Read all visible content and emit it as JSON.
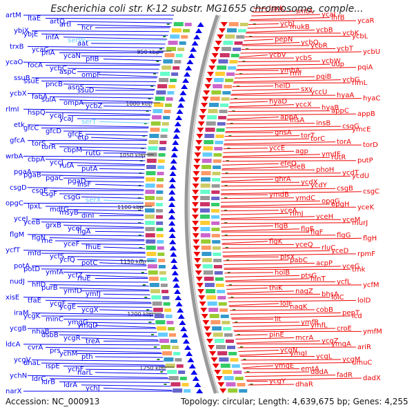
{
  "title": "Escherichia coli str. K-12 substr. MG1655 chromosome, comple...",
  "footer": {
    "accession": "Accession: NC_000913",
    "topology": "Topology: circular; Length: 4,639,675 bp; Genes: 4,255"
  },
  "scale_labels": [
    "950 kbp",
    "1000 kbp",
    "1050 kbp",
    "1100 kbp",
    "1150 kbp",
    "1200 kbp",
    "1250 kbp"
  ],
  "colors": {
    "forward": "#0000ee",
    "reverse": "#ee0000",
    "trna": "#66ccff",
    "backbone": "#999999",
    "tick": "#228822"
  },
  "left_genes": [
    "artM",
    "ltaE",
    "artQ",
    "artI",
    "hcr",
    "ybjX",
    "ybjE",
    "infA",
    "serW",
    "aat",
    "trxB",
    "ycaC",
    "pflA",
    "ycaN",
    "pflB",
    "ycaO",
    "focA",
    "ycbC",
    "aspC",
    "ompF",
    "ssuB",
    "ssuE",
    "pncB",
    "asnS",
    "ssuD",
    "ycbX",
    "fabA",
    "sulA",
    "ompA",
    "ycbZ",
    "rlmI",
    "hspQ",
    "ycaI",
    "ycaJ",
    "serT",
    "etk",
    "gfcC",
    "gfcD",
    "gfcE",
    "etp",
    "gfcA",
    "torS",
    "torR",
    "cbpM",
    "rutG",
    "wrbA",
    "cbpA",
    "yccJ",
    "rutA",
    "putA",
    "pgaA",
    "pgaB",
    "pgaC",
    "pgaD",
    "insF",
    "csgD",
    "csgE",
    "csgF",
    "csgG",
    "serX",
    "opgC",
    "lpxL",
    "mdtG",
    "msyB",
    "dinI",
    "yceJ",
    "yceB",
    "grxB",
    "yceI",
    "flgA",
    "flgM",
    "flgN",
    "rne",
    "yceF",
    "fhuE",
    "ycfT",
    "mfd",
    "ycfS",
    "ycfQ",
    "potC",
    "potA",
    "potD",
    "ymfA",
    "ycfZ",
    "rluE",
    "nudJ",
    "hflD",
    "purB",
    "ymfD",
    "ymfJ",
    "xisE",
    "tfaE",
    "ycgF",
    "ycgE",
    "ycgX",
    "iraM",
    "ycgK",
    "minC",
    "ymgG",
    "ymgD",
    "ycgB",
    "nhaB",
    "dsbB",
    "ycgR",
    "treA",
    "ldcA",
    "cvrA",
    "prs",
    "ychM",
    "pth",
    "ycgV",
    "dhaL",
    "ispE",
    "ychF",
    "narL",
    "ychN",
    "ldrC",
    "ldrB",
    "ldrA",
    "ychJ",
    "narX"
  ],
  "right_genes": [
    "lpxK",
    "smtA",
    "ycaI",
    "ihfB",
    "ycaR",
    "ycbJ",
    "mukB",
    "ycbB",
    "ycbK",
    "ycbL",
    "pepN",
    "ycbQ",
    "ycbR",
    "ycbT",
    "ycbU",
    "ycbV",
    "ycbS",
    "ycbW",
    "uup",
    "pqiA",
    "ymbA",
    "rmf",
    "pqiB",
    "ycbG",
    "rlmL",
    "helD",
    "sxy",
    "yccU",
    "hyaA",
    "hyaC",
    "hyaD",
    "yccX",
    "hyaB",
    "appC",
    "appB",
    "appA",
    "insA",
    "insB",
    "csgG",
    "ymcE",
    "gnsA",
    "torT",
    "torC",
    "torA",
    "torD",
    "yccE",
    "agp",
    "ymdF",
    "rutR",
    "putP",
    "efeO",
    "efeB",
    "phoH",
    "ycdT",
    "ycdU",
    "ghrA",
    "ycdX",
    "ycdY",
    "csgB",
    "csgC",
    "ymdB",
    "ymdC",
    "opgG",
    "opgH",
    "yceK",
    "yceA",
    "rimJ",
    "yceH",
    "yceM",
    "murJ",
    "flgB",
    "flgE",
    "flgF",
    "flgG",
    "flgH",
    "flgK",
    "yceQ",
    "rluC",
    "yceD",
    "rpmF",
    "plsX",
    "pabC",
    "acpP",
    "yceG",
    "tmk",
    "holB",
    "ptsG",
    "hinT",
    "ycfL",
    "ycfM",
    "thiK",
    "nagZ",
    "bhsA",
    "lolC",
    "lolD",
    "lolE",
    "nagK",
    "cobB",
    "pepT",
    "icd",
    "lit",
    "ymfR",
    "ymfL",
    "croE",
    "ymfM",
    "pinE",
    "mcrA",
    "ycgZ",
    "ymgA",
    "ariR",
    "ycgN",
    "ymgI",
    "ycgL",
    "ycgM",
    "umuC",
    "ymgE",
    "emtA",
    "dadA",
    "fadR",
    "dadX",
    "ycgY",
    "dhaR"
  ]
}
